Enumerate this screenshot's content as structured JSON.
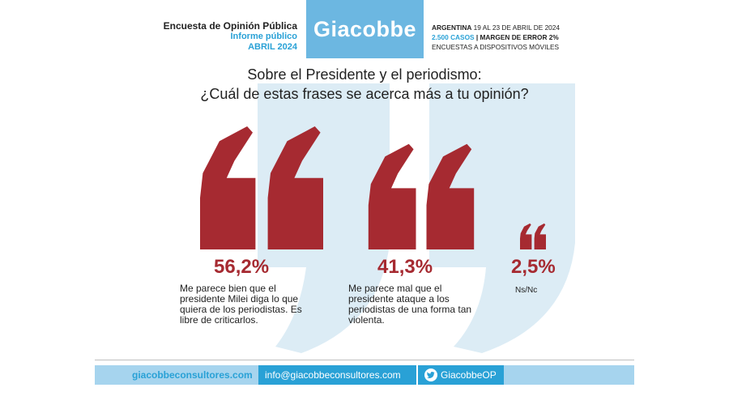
{
  "header": {
    "survey_title": "Encuesta de Opinión Pública",
    "report_type": "Informe público",
    "date": "ABRIL 2024",
    "brand": "Giacobbe",
    "line1_bold": "ARGENTINA",
    "line1_rest": " 19 AL 23 DE ABRIL DE 2024",
    "line2_cases": "2.500 CASOS",
    "line2_rest": " | MARGEN DE ERROR 2%",
    "line3": "ENCUESTAS A DISPOSITIVOS MÓVILES"
  },
  "title": {
    "line1": "Sobre el Presidente y el periodismo:",
    "line2": "¿Cuál de estas frases se acerca más a tu opinión?"
  },
  "chart_data": {
    "type": "bar",
    "categories": [
      "Me parece bien que el presidente Milei diga lo que quiera de los periodistas. Es libre de criticarlos.",
      "Me parece mal que el presidente ataque a los periodistas de una forma tan violenta.",
      "Ns/Nc"
    ],
    "values": [
      56.2,
      41.3,
      2.5
    ],
    "value_labels": [
      "56,2%",
      "41,3%",
      "2,5%"
    ],
    "unit": "%",
    "color": "#a62a31"
  },
  "colors": {
    "accent": "#a62a31",
    "brand_blue": "#29a1d6",
    "logo_bg": "#6cb7e1",
    "footer_bg": "#a6d4ee",
    "watermark": "#dcecf5"
  },
  "footer": {
    "website": "giacobbeconsultores.com",
    "email": "info@giacobbeconsultores.com",
    "twitter": "GiacobbeOP",
    "twitter_icon": "twitter-bird-icon"
  }
}
